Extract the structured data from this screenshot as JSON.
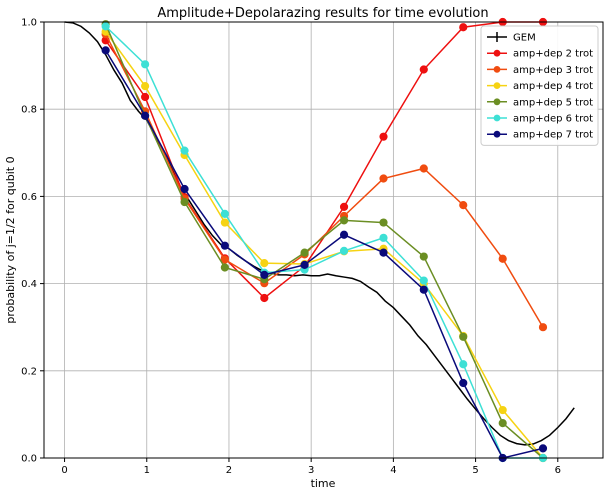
{
  "chart_data": {
    "type": "line",
    "title": "Amplitude+Depolarazing results for time evolution",
    "xlabel": "time",
    "ylabel": "probability of j=1/2 for qubit 0",
    "xlim": [
      -0.25,
      6.55
    ],
    "ylim": [
      0.0,
      1.0
    ],
    "xticks": [
      0,
      1,
      2,
      3,
      4,
      5,
      6
    ],
    "yticks": [
      0.0,
      0.2,
      0.4,
      0.6,
      0.8,
      1.0
    ],
    "xtick_labels": [
      "0",
      "1",
      "2",
      "3",
      "4",
      "5",
      "6"
    ],
    "ytick_labels": [
      "0.0",
      "0.2",
      "0.4",
      "0.6",
      "0.8",
      "1.0"
    ],
    "grid": true,
    "legend_position": "top-right",
    "reference": {
      "name": "GEM",
      "color": "#000000",
      "x": [
        0.0,
        0.1,
        0.2,
        0.3,
        0.4,
        0.5,
        0.6,
        0.7,
        0.8,
        0.9,
        1.0,
        1.1,
        1.2,
        1.3,
        1.4,
        1.5,
        1.6,
        1.7,
        1.8,
        1.9,
        2.0,
        2.1,
        2.2,
        2.3,
        2.4,
        2.5,
        2.6,
        2.7,
        2.8,
        2.9,
        3.0,
        3.1,
        3.2,
        3.3,
        3.4,
        3.5,
        3.6,
        3.7,
        3.8,
        3.9,
        4.0,
        4.1,
        4.2,
        4.3,
        4.4,
        4.5,
        4.6,
        4.7,
        4.8,
        4.9,
        5.0,
        5.1,
        5.2,
        5.3,
        5.4,
        5.5,
        5.6,
        5.7,
        5.8,
        5.9,
        6.0,
        6.1,
        6.2
      ],
      "y": [
        1.0,
        0.998,
        0.99,
        0.975,
        0.955,
        0.925,
        0.89,
        0.86,
        0.82,
        0.795,
        0.775,
        0.74,
        0.705,
        0.665,
        0.625,
        0.595,
        0.565,
        0.535,
        0.51,
        0.49,
        0.48,
        0.465,
        0.452,
        0.44,
        0.43,
        0.425,
        0.42,
        0.42,
        0.418,
        0.42,
        0.418,
        0.418,
        0.422,
        0.418,
        0.415,
        0.412,
        0.405,
        0.392,
        0.38,
        0.36,
        0.345,
        0.325,
        0.305,
        0.28,
        0.26,
        0.235,
        0.21,
        0.185,
        0.16,
        0.135,
        0.112,
        0.09,
        0.07,
        0.052,
        0.04,
        0.033,
        0.03,
        0.032,
        0.04,
        0.052,
        0.07,
        0.09,
        0.115
      ]
    },
    "x": [
      0.5,
      0.98,
      1.46,
      1.95,
      2.43,
      2.92,
      3.4,
      3.88,
      4.37,
      4.85,
      5.33,
      5.82
    ],
    "series": [
      {
        "name": "amp+dep 2 trot",
        "color": "#ee1010",
        "values": [
          0.958,
          0.828,
          0.598,
          0.458,
          0.367,
          0.44,
          0.576,
          0.737,
          0.891,
          0.988,
          1.0,
          1.0
        ]
      },
      {
        "name": "amp+dep 3 trot",
        "color": "#f04c10",
        "values": [
          0.972,
          0.795,
          0.595,
          0.455,
          0.401,
          0.467,
          0.555,
          0.641,
          0.664,
          0.58,
          0.457,
          0.3
        ]
      },
      {
        "name": "amp+dep 4 trot",
        "color": "#f6d313",
        "values": [
          0.978,
          0.853,
          0.695,
          0.54,
          0.447,
          0.445,
          0.474,
          0.48,
          0.4,
          0.28,
          0.11,
          0.0
        ]
      },
      {
        "name": "amp+dep 5 trot",
        "color": "#6b8e23",
        "values": [
          0.995,
          0.785,
          0.587,
          0.437,
          0.41,
          0.471,
          0.545,
          0.54,
          0.462,
          0.278,
          0.08,
          0.0
        ]
      },
      {
        "name": "amp+dep 6 trot",
        "color": "#3de0d5",
        "values": [
          0.99,
          0.903,
          0.705,
          0.56,
          0.425,
          0.432,
          0.475,
          0.505,
          0.407,
          0.215,
          0.0,
          0.0
        ]
      },
      {
        "name": "amp+dep 7 trot",
        "color": "#0a0a7a",
        "values": [
          0.935,
          0.785,
          0.617,
          0.487,
          0.42,
          0.443,
          0.512,
          0.471,
          0.386,
          0.172,
          0.0,
          0.022
        ]
      }
    ]
  }
}
